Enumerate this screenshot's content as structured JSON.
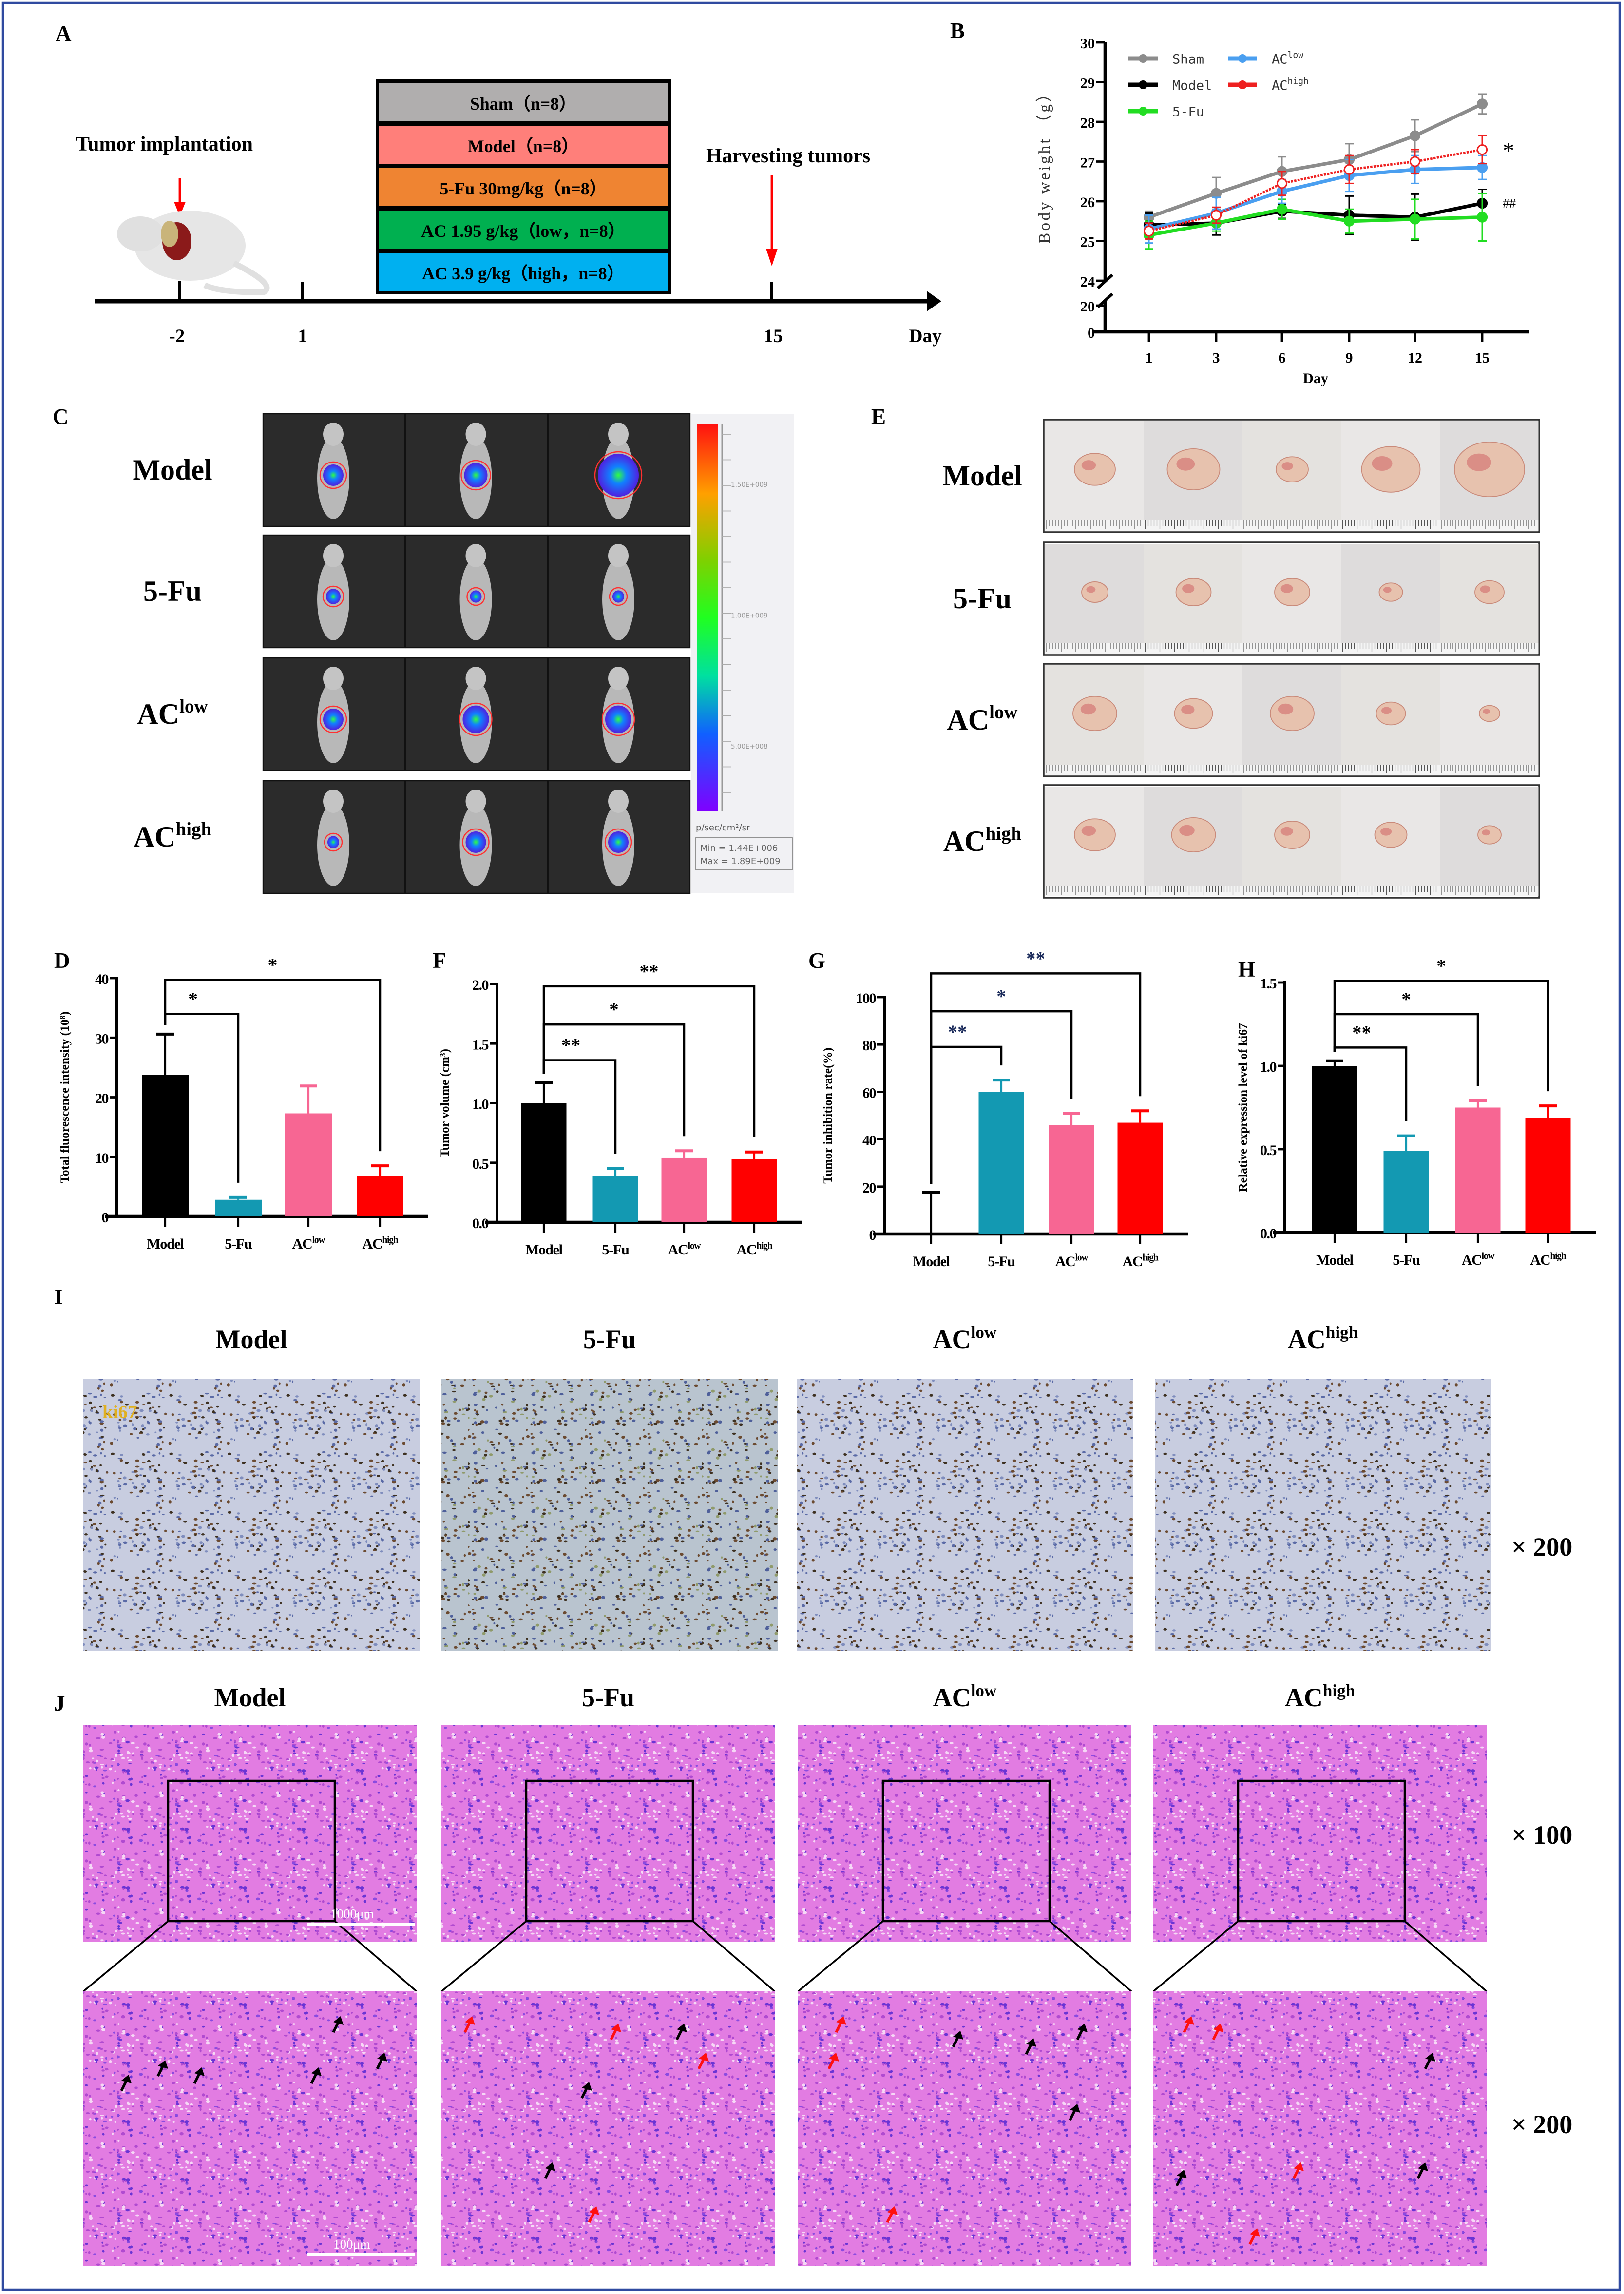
{
  "figure": {
    "panel_A": {
      "label": "A",
      "implant_text": "Tumor implantation",
      "harvest_text": "Harvesting tumors",
      "timeline_ticks": [
        "-2",
        "1",
        "15"
      ],
      "axis_label": "Day",
      "groups": [
        {
          "text": "Sham（n=8）",
          "color": "#b0aeae"
        },
        {
          "text": "Model（n=8）",
          "color": "#ff7f7a"
        },
        {
          "text": "5-Fu 30mg/kg（n=8）",
          "color": "#ef8432"
        },
        {
          "text": "AC 1.95 g/kg（low，n=8）",
          "color": "#00b050"
        },
        {
          "text": "AC 3.9 g/kg（high，n=8）",
          "color": "#00b0f0"
        }
      ]
    },
    "panel_C": {
      "label": "C",
      "rows": [
        {
          "base": "Model"
        },
        {
          "base": "5-Fu"
        },
        {
          "base": "AC",
          "sup": "low"
        },
        {
          "base": "AC",
          "sup": "high"
        }
      ],
      "colorbar": {
        "ticks": [
          "1.50E+009",
          "1.00E+009",
          "5.00E+008"
        ],
        "unit": "p/sec/cm²/sr",
        "min": "Min = 1.44E+006",
        "max": "Max = 1.89E+009"
      }
    },
    "panel_E": {
      "label": "E",
      "rows": [
        {
          "base": "Model"
        },
        {
          "base": "5-Fu"
        },
        {
          "base": "AC",
          "sup": "low"
        },
        {
          "base": "AC",
          "sup": "high"
        }
      ]
    },
    "panel_I": {
      "label": "I",
      "columns": [
        {
          "base": "Model"
        },
        {
          "base": "5-Fu"
        },
        {
          "base": "AC",
          "sup": "low"
        },
        {
          "base": "AC",
          "sup": "high"
        }
      ],
      "stain_label": "ki67",
      "magnification": "× 200"
    },
    "panel_J": {
      "label": "J",
      "columns": [
        {
          "base": "Model"
        },
        {
          "base": "5-Fu"
        },
        {
          "base": "AC",
          "sup": "low"
        },
        {
          "base": "AC",
          "sup": "high"
        }
      ],
      "magnification_top": "× 100",
      "magnification_bottom": "× 200",
      "scalebar_top": "1000μm",
      "scalebar_bottom": "100μm"
    }
  },
  "chart_data": [
    {
      "panel": "B",
      "type": "line",
      "xlabel": "Day",
      "ylabel": "Body weight （g）",
      "x": [
        "1",
        "3",
        "6",
        "9",
        "12",
        "15"
      ],
      "yticks": [
        "0",
        "20",
        "24",
        "25",
        "26",
        "27",
        "28",
        "29",
        "30"
      ],
      "ylim": [
        0,
        30
      ],
      "y_axis_break": [
        20,
        24
      ],
      "legend": "top-left",
      "series": [
        {
          "name": "Sham",
          "color": "#8c8c8c",
          "values": [
            25.6,
            26.2,
            26.75,
            27.05,
            27.65,
            28.45
          ],
          "errors": [
            0.15,
            0.4,
            0.37,
            0.4,
            0.4,
            0.25
          ]
        },
        {
          "name": "Model",
          "color": "#000000",
          "values": [
            25.4,
            25.45,
            25.75,
            25.65,
            25.6,
            25.95
          ],
          "errors": [
            0.3,
            0.3,
            0.18,
            0.48,
            0.58,
            0.35
          ]
        },
        {
          "name": "5-Fu",
          "color": "#22dd22",
          "values": [
            25.15,
            25.45,
            25.8,
            25.5,
            25.55,
            25.6
          ],
          "errors": [
            0.35,
            0.2,
            0.25,
            0.3,
            0.5,
            0.6
          ]
        },
        {
          "name": "AC",
          "sup": "low",
          "color": "#4a9ff0",
          "values": [
            25.3,
            25.7,
            26.25,
            26.65,
            26.8,
            26.85
          ],
          "errors": [
            0.35,
            0.4,
            0.3,
            0.4,
            0.35,
            0.3
          ]
        },
        {
          "name": "AC",
          "sup": "high",
          "color": "#ee2020",
          "values": [
            25.25,
            25.65,
            26.45,
            26.8,
            27.0,
            27.3
          ],
          "errors": [
            0.2,
            0.2,
            0.3,
            0.35,
            0.3,
            0.35
          ]
        }
      ],
      "annotations": [
        {
          "text": "*",
          "series": 4,
          "at": "15"
        },
        {
          "text": "##",
          "series": 1,
          "at": "15"
        }
      ]
    },
    {
      "panel": "D",
      "type": "bar",
      "ylabel": "Total fluorescence intensity (10⁸)",
      "ylim": [
        0,
        40
      ],
      "yticks": [
        "0",
        "10",
        "20",
        "30",
        "40"
      ],
      "categories": [
        {
          "base": "Model"
        },
        {
          "base": "5-Fu"
        },
        {
          "base": "AC",
          "sup": "low"
        },
        {
          "base": "AC",
          "sup": "high"
        }
      ],
      "colors": [
        "#000000",
        "#1399b2",
        "#f76693",
        "#ff0000"
      ],
      "values": [
        23.8,
        2.8,
        17.3,
        6.8
      ],
      "errors": [
        6.8,
        0.4,
        4.6,
        1.7
      ],
      "significance": [
        {
          "from": 0,
          "to": 1,
          "y": 34,
          "label": "*"
        },
        {
          "from": 0,
          "to": 3,
          "y": 39.7,
          "label": "*"
        }
      ]
    },
    {
      "panel": "F",
      "type": "bar",
      "ylabel": "Tumor volume (cm³)",
      "ylim": [
        0,
        2
      ],
      "yticks": [
        "0.0",
        "0.5",
        "1.0",
        "1.5",
        "2.0"
      ],
      "categories": [
        {
          "base": "Model"
        },
        {
          "base": "5-Fu"
        },
        {
          "base": "AC",
          "sup": "low"
        },
        {
          "base": "AC",
          "sup": "high"
        }
      ],
      "colors": [
        "#000000",
        "#1399b2",
        "#f76693",
        "#ff0000"
      ],
      "values": [
        1.0,
        0.39,
        0.54,
        0.53
      ],
      "errors": [
        0.17,
        0.06,
        0.06,
        0.06
      ],
      "significance": [
        {
          "from": 0,
          "to": 1,
          "y": 1.36,
          "label": "**"
        },
        {
          "from": 0,
          "to": 2,
          "y": 1.66,
          "label": "*"
        },
        {
          "from": 0,
          "to": 3,
          "y": 1.98,
          "label": "**"
        }
      ]
    },
    {
      "panel": "G",
      "type": "bar",
      "ylabel": "Tumor inhibition rate(%)",
      "ylim": [
        0,
        100
      ],
      "yticks": [
        "0",
        "20",
        "40",
        "60",
        "80",
        "100"
      ],
      "categories": [
        {
          "base": "Model"
        },
        {
          "base": "5-Fu"
        },
        {
          "base": "AC",
          "sup": "low"
        },
        {
          "base": "AC",
          "sup": "high"
        }
      ],
      "colors": [
        "#000000",
        "#1399b2",
        "#f76693",
        "#ff0000"
      ],
      "values": [
        0,
        60,
        46,
        47
      ],
      "errors": [
        17.5,
        5,
        5,
        5
      ],
      "significance": [
        {
          "from": 0,
          "to": 1,
          "y": 79,
          "label": "**"
        },
        {
          "from": 0,
          "to": 2,
          "y": 94,
          "label": "*"
        },
        {
          "from": 0,
          "to": 3,
          "y": 110,
          "label": "**"
        }
      ]
    },
    {
      "panel": "H",
      "type": "bar",
      "ylabel": "Relative expression level of ki67",
      "ylim": [
        0,
        1.5
      ],
      "yticks": [
        "0.0",
        "0.5",
        "1.0",
        "1.5"
      ],
      "categories": [
        {
          "base": "Model"
        },
        {
          "base": "5-Fu"
        },
        {
          "base": "AC",
          "sup": "low"
        },
        {
          "base": "AC",
          "sup": "high"
        }
      ],
      "colors": [
        "#000000",
        "#1399b2",
        "#f76693",
        "#ff0000"
      ],
      "values": [
        1.0,
        0.49,
        0.75,
        0.69
      ],
      "errors": [
        0.03,
        0.09,
        0.04,
        0.07
      ],
      "significance": [
        {
          "from": 0,
          "to": 1,
          "y": 1.11,
          "label": "**"
        },
        {
          "from": 0,
          "to": 2,
          "y": 1.31,
          "label": "*"
        },
        {
          "from": 0,
          "to": 3,
          "y": 1.51,
          "label": "*"
        }
      ]
    }
  ]
}
